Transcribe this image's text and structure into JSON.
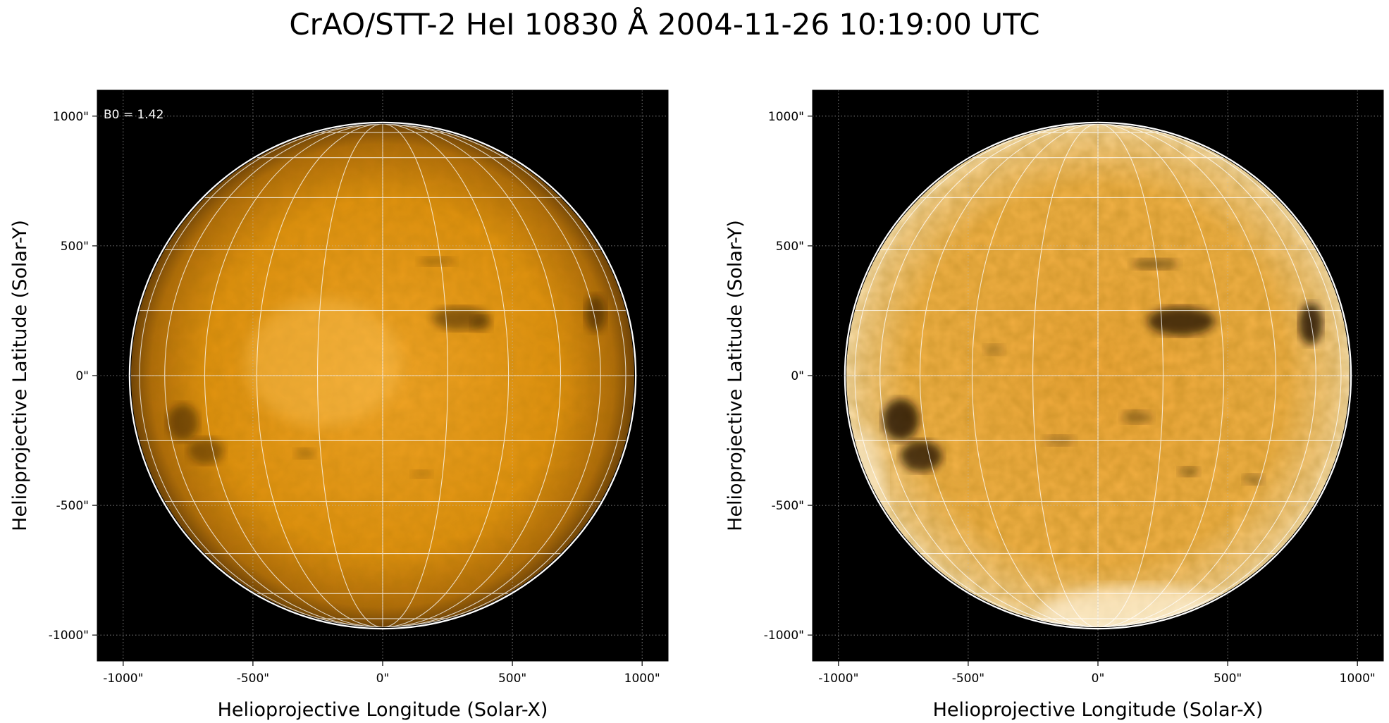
{
  "figure": {
    "title": "CrAO/STT-2 HeI 10830 Å 2004-11-26 10:19:00 UTC"
  },
  "panels": [
    {
      "id": "left",
      "annotation": "B0 = 1.42",
      "xlabel": "Helioprojective Longitude (Solar-X)",
      "ylabel": "Helioprojective Latitude (Solar-Y)",
      "xticks": [
        "-1000\"",
        "-500\"",
        "0\"",
        "500\"",
        "1000\""
      ],
      "yticks": [
        "1000\"",
        "500\"",
        "0\"",
        "-500\"",
        "-1000\""
      ],
      "style": "smooth"
    },
    {
      "id": "right",
      "annotation": "",
      "xlabel": "Helioprojective Longitude (Solar-X)",
      "ylabel": "Helioprojective Latitude (Solar-Y)",
      "xticks": [
        "-1000\"",
        "-500\"",
        "0\"",
        "500\"",
        "1000\""
      ],
      "yticks": [
        "1000\"",
        "500\"",
        "0\"",
        "-500\"",
        "-1000\""
      ],
      "style": "enhanced"
    }
  ],
  "colors": {
    "background": "#000000",
    "disk_center": "#f0a020",
    "disk_limb": "#7a4a0c",
    "grid": "#ffffff",
    "limb_outline": "#ffffff"
  },
  "axes": {
    "x_range": [
      -1100,
      1100
    ],
    "y_range": [
      -1100,
      1100
    ],
    "tick_values": [
      -1000,
      -500,
      0,
      500,
      1000
    ],
    "solar_radius_arcsec": 970
  }
}
